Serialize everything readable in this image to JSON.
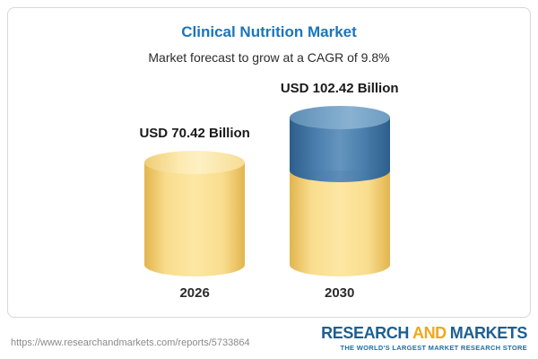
{
  "chart_data": {
    "type": "bar",
    "subtype": "3d-cylinder",
    "categories": [
      "2026",
      "2030"
    ],
    "values": [
      70.42,
      102.42
    ],
    "value_labels": [
      "USD 70.42 Billion",
      "USD 102.42 Billion"
    ],
    "title": "Clinical Nutrition Market",
    "subtitle": "Market forecast to grow at a CAGR of 9.8%",
    "cagr_percent": 9.8,
    "unit": "USD Billion",
    "ylim": [
      0,
      110
    ],
    "grid": "off",
    "legend": "none",
    "colors": {
      "bar_base_yellow": "#f9dd8e",
      "bar_growth_blue": "#4d80ae",
      "title_blue": "#1b75bb"
    },
    "notes": "2030 bar is two-tone: yellow lower segment equals 2026 value, blue upper segment shows growth to 102.42"
  },
  "header": {
    "title": "Clinical Nutrition Market",
    "subtitle": "Market forecast to grow at a CAGR of 9.8%"
  },
  "bars": [
    {
      "value_label": "USD 70.42 Billion",
      "year": "2026"
    },
    {
      "value_label": "USD 102.42 Billion",
      "year": "2030"
    }
  ],
  "footer": {
    "url": "https://www.researchandmarkets.com/reports/5733864",
    "logo": {
      "word1": "RESEARCH",
      "word2": "AND",
      "word3": "MARKETS",
      "tagline": "THE WORLD'S LARGEST MARKET RESEARCH STORE"
    }
  }
}
